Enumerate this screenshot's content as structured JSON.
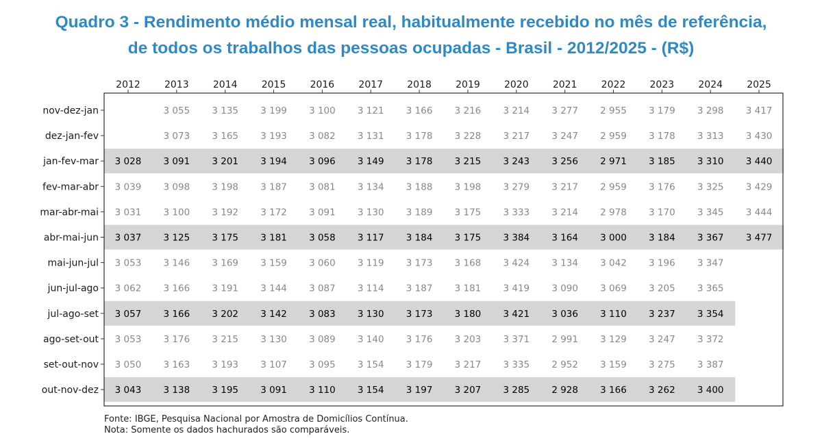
{
  "title_line1": "Quadro 3 - Rendimento médio mensal real, habitualmente recebido no mês de referência,",
  "title_line2": "de todos os trabalhos das pessoas ocupadas - Brasil - 2012/2025 - (R$)",
  "source_line": "Fonte: IBGE, Pesquisa Nacional por Amostra de Domicílios Contínua.",
  "note_line": " Nota: Somente os dados hachurados são comparáveis.",
  "colors": {
    "title": "#2e8ac6",
    "highlight_band": "#d5d5d5",
    "regular_text": "#888888",
    "highlight_text": "#000000",
    "frame": "#000000"
  },
  "chart_data": {
    "type": "table",
    "columns": [
      "2012",
      "2013",
      "2014",
      "2015",
      "2016",
      "2017",
      "2018",
      "2019",
      "2020",
      "2021",
      "2022",
      "2023",
      "2024",
      "2025"
    ],
    "rows": [
      {
        "label": "nov-dez-jan",
        "highlight": false,
        "values": [
          "",
          "3 055",
          "3 135",
          "3 199",
          "3 100",
          "3 121",
          "3 166",
          "3 216",
          "3 214",
          "3 277",
          "2 955",
          "3 179",
          "3 298",
          "3 417"
        ]
      },
      {
        "label": "dez-jan-fev",
        "highlight": false,
        "values": [
          "",
          "3 073",
          "3 165",
          "3 193",
          "3 082",
          "3 131",
          "3 178",
          "3 228",
          "3 217",
          "3 247",
          "2 959",
          "3 178",
          "3 313",
          "3 430"
        ]
      },
      {
        "label": "jan-fev-mar",
        "highlight": true,
        "values": [
          "3 028",
          "3 091",
          "3 201",
          "3 194",
          "3 096",
          "3 149",
          "3 178",
          "3 215",
          "3 243",
          "3 256",
          "2 971",
          "3 185",
          "3 310",
          "3 440"
        ]
      },
      {
        "label": "fev-mar-abr",
        "highlight": false,
        "values": [
          "3 039",
          "3 098",
          "3 198",
          "3 187",
          "3 081",
          "3 134",
          "3 188",
          "3 198",
          "3 279",
          "3 217",
          "2 959",
          "3 176",
          "3 325",
          "3 429"
        ]
      },
      {
        "label": "mar-abr-mai",
        "highlight": false,
        "values": [
          "3 031",
          "3 100",
          "3 192",
          "3 172",
          "3 091",
          "3 130",
          "3 189",
          "3 175",
          "3 333",
          "3 214",
          "2 978",
          "3 170",
          "3 345",
          "3 444"
        ]
      },
      {
        "label": "abr-mai-jun",
        "highlight": true,
        "values": [
          "3 037",
          "3 125",
          "3 175",
          "3 181",
          "3 058",
          "3 117",
          "3 184",
          "3 175",
          "3 384",
          "3 164",
          "3 000",
          "3 184",
          "3 367",
          "3 477"
        ]
      },
      {
        "label": "mai-jun-jul",
        "highlight": false,
        "values": [
          "3 053",
          "3 146",
          "3 169",
          "3 159",
          "3 060",
          "3 119",
          "3 173",
          "3 168",
          "3 424",
          "3 134",
          "3 042",
          "3 196",
          "3 347",
          ""
        ]
      },
      {
        "label": "jun-jul-ago",
        "highlight": false,
        "values": [
          "3 062",
          "3 166",
          "3 191",
          "3 144",
          "3 087",
          "3 114",
          "3 187",
          "3 181",
          "3 419",
          "3 090",
          "3 069",
          "3 205",
          "3 365",
          ""
        ]
      },
      {
        "label": "jul-ago-set",
        "highlight": true,
        "values": [
          "3 057",
          "3 166",
          "3 202",
          "3 142",
          "3 083",
          "3 130",
          "3 173",
          "3 180",
          "3 421",
          "3 036",
          "3 110",
          "3 237",
          "3 354",
          ""
        ]
      },
      {
        "label": "ago-set-out",
        "highlight": false,
        "values": [
          "3 053",
          "3 176",
          "3 215",
          "3 130",
          "3 089",
          "3 140",
          "3 176",
          "3 203",
          "3 371",
          "2 991",
          "3 129",
          "3 247",
          "3 372",
          ""
        ]
      },
      {
        "label": "set-out-nov",
        "highlight": false,
        "values": [
          "3 050",
          "3 163",
          "3 193",
          "3 107",
          "3 095",
          "3 154",
          "3 179",
          "3 217",
          "3 335",
          "2 952",
          "3 159",
          "3 275",
          "3 387",
          ""
        ]
      },
      {
        "label": "out-nov-dez",
        "highlight": true,
        "values": [
          "3 043",
          "3 138",
          "3 195",
          "3 091",
          "3 110",
          "3 154",
          "3 197",
          "3 207",
          "3 285",
          "2 928",
          "3 166",
          "3 262",
          "3 400",
          ""
        ]
      }
    ]
  }
}
